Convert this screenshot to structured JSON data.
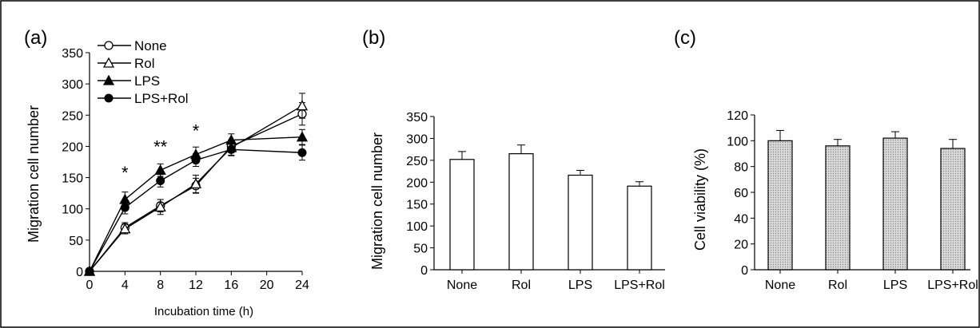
{
  "figure": {
    "border": true
  },
  "panel_labels": [
    "(a)",
    "(b)",
    "(c)"
  ],
  "chart_data": [
    {
      "id": "a",
      "type": "line",
      "panel_label": "(a)",
      "xlabel": "Incubation time (h)",
      "ylabel": "Migration cell number",
      "x": [
        0,
        4,
        8,
        12,
        16,
        20,
        24
      ],
      "x_ticks": [
        0,
        4,
        8,
        12,
        16,
        20,
        24
      ],
      "xlim": [
        0,
        24
      ],
      "ylim": [
        0,
        350
      ],
      "y_ticks": [
        0,
        50,
        100,
        150,
        200,
        250,
        300,
        350
      ],
      "legend_position": "top-left",
      "series": [
        {
          "name": "None",
          "marker": "open-circle",
          "x": [
            0,
            4,
            8,
            12,
            16,
            24
          ],
          "values": [
            0,
            70,
            105,
            137,
            200,
            252
          ],
          "errors": [
            0,
            8,
            10,
            12,
            10,
            18
          ]
        },
        {
          "name": "Rol",
          "marker": "open-triangle",
          "x": [
            0,
            4,
            8,
            12,
            16,
            24
          ],
          "values": [
            0,
            68,
            103,
            140,
            198,
            265
          ],
          "errors": [
            0,
            8,
            12,
            14,
            12,
            20
          ]
        },
        {
          "name": "LPS",
          "marker": "filled-triangle",
          "x": [
            0,
            4,
            8,
            12,
            16,
            24
          ],
          "values": [
            0,
            115,
            162,
            187,
            210,
            215
          ],
          "errors": [
            0,
            12,
            10,
            12,
            10,
            12
          ]
        },
        {
          "name": "LPS+Rol",
          "marker": "filled-circle",
          "x": [
            0,
            4,
            8,
            12,
            16,
            24
          ],
          "values": [
            0,
            102,
            145,
            178,
            195,
            190
          ],
          "errors": [
            0,
            10,
            10,
            10,
            10,
            12
          ]
        }
      ],
      "annotations": [
        {
          "text": "*",
          "x": 4,
          "y": 148
        },
        {
          "text": "**",
          "x": 8,
          "y": 190
        },
        {
          "text": "*",
          "x": 12,
          "y": 215
        }
      ]
    },
    {
      "id": "b",
      "type": "bar",
      "panel_label": "(b)",
      "xlabel": "",
      "ylabel": "Migration cell number",
      "categories": [
        "None",
        "Rol",
        "LPS",
        "LPS+Rol"
      ],
      "values": [
        252,
        265,
        216,
        191
      ],
      "errors": [
        18,
        20,
        11,
        10
      ],
      "ylim": [
        0,
        350
      ],
      "y_ticks": [
        0,
        50,
        100,
        150,
        200,
        250,
        300,
        350
      ],
      "bar_color": "#ffffff"
    },
    {
      "id": "c",
      "type": "bar",
      "panel_label": "(c)",
      "xlabel": "",
      "ylabel": "Cell viability (%)",
      "categories": [
        "None",
        "Rol",
        "LPS",
        "LPS+Rol"
      ],
      "values": [
        100,
        96,
        102,
        94
      ],
      "errors": [
        8,
        5,
        5,
        7
      ],
      "ylim": [
        0,
        120
      ],
      "y_ticks": [
        0,
        20,
        40,
        60,
        80,
        100,
        120
      ],
      "bar_color": "#c8c8c8",
      "bar_pattern": "dotted"
    }
  ]
}
